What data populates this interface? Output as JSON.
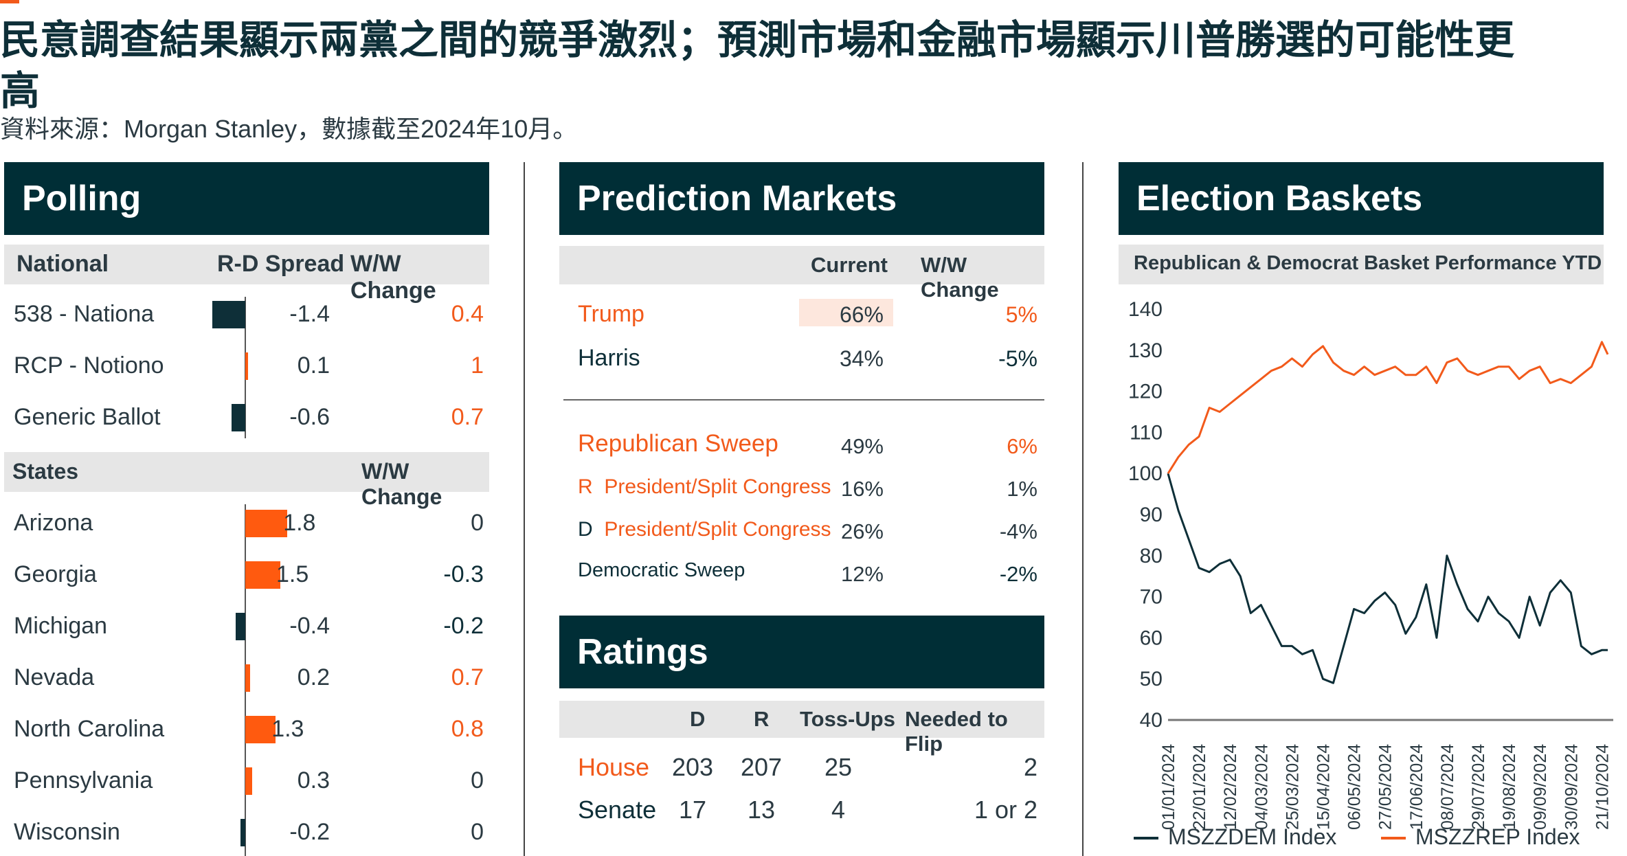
{
  "header": {
    "title": "民意調查結果顯示兩黨之間的競爭激烈；預測市場和金融市場顯示川普勝選的可能性更高",
    "source": "資料來源：Morgan Stanley，數據截至2024年10月。"
  },
  "polling": {
    "title": "Polling",
    "national_header": {
      "col1": "National",
      "col2": "R-D Spread",
      "col3": "W/W Change"
    },
    "national": [
      {
        "label": "538 - Nationa",
        "spread": "-1.4",
        "change": "0.4",
        "value": -1.4,
        "change_color": "orange"
      },
      {
        "label": "RCP - Notiono",
        "spread": "0.1",
        "change": "1",
        "value": 0.1,
        "change_color": "orange"
      },
      {
        "label": "Generic Ballot",
        "spread": "-0.6",
        "change": "0.7",
        "value": -0.6,
        "change_color": "orange"
      }
    ],
    "states_header": {
      "col1": "States",
      "col3": "W/W Change"
    },
    "states": [
      {
        "label": "Arizona",
        "spread": "1.8",
        "change": "0",
        "value": 1.8,
        "change_color": "gray"
      },
      {
        "label": "Georgia",
        "spread": "1.5",
        "change": "-0.3",
        "value": 1.5,
        "change_color": "dark"
      },
      {
        "label": "Michigan",
        "spread": "-0.4",
        "change": "-0.2",
        "value": -0.4,
        "change_color": "dark"
      },
      {
        "label": "Nevada",
        "spread": "0.2",
        "change": "0.7",
        "value": 0.2,
        "change_color": "orange"
      },
      {
        "label": "North Carolina",
        "spread": "1.3",
        "change": "0.8",
        "value": 1.3,
        "change_color": "orange"
      },
      {
        "label": "Pennsylvania",
        "spread": "0.3",
        "change": "0",
        "value": 0.3,
        "change_color": "gray"
      },
      {
        "label": "Wisconsin",
        "spread": "-0.2",
        "change": "0",
        "value": -0.2,
        "change_color": "gray"
      }
    ]
  },
  "prediction": {
    "title": "Prediction Markets",
    "header": {
      "current": "Current",
      "change": "W/W Change"
    },
    "rows": [
      {
        "label": "Trump",
        "current": "66%",
        "change": "5%",
        "highlight": true
      },
      {
        "label": "Harris",
        "current": "34%",
        "change": "-5%",
        "highlight": false
      }
    ],
    "sweep_rows": [
      {
        "prefix": "",
        "label": "Republican Sweep",
        "current": "49%",
        "change": "6%"
      },
      {
        "prefix": "R",
        "label": "President/Split Congress",
        "current": "16%",
        "change": "1%"
      },
      {
        "prefix": "D",
        "label": "President/Split Congress",
        "current": "26%",
        "change": "-4%"
      },
      {
        "prefix": "",
        "label": "Democratic Sweep",
        "current": "12%",
        "change": "-2%"
      }
    ]
  },
  "ratings": {
    "title": "Ratings",
    "header": {
      "d": "D",
      "r": "R",
      "toss": "Toss-Ups",
      "flip": "Needed to Flip"
    },
    "rows": [
      {
        "label": "House",
        "d": "203",
        "r": "207",
        "toss": "25",
        "flip": "2"
      },
      {
        "label": "Senate",
        "d": "17",
        "r": "13",
        "toss": "4",
        "flip": "1 or 2"
      }
    ]
  },
  "baskets": {
    "title": "Election Baskets",
    "subtitle": "Republican & Democrat Basket Performance YTD",
    "legend": {
      "dem": "MSZZDEM Index",
      "rep": "MSZZREP Index"
    }
  },
  "colors": {
    "navy": "#002e36",
    "orange": "#f25a1b",
    "bar_orange": "#ff5a0f",
    "dark_line": "#0e2f38"
  },
  "chart_data": [
    {
      "type": "bar",
      "title": "Polling",
      "categories": [
        "538 - Nationa",
        "RCP - Notiono",
        "Generic Ballot",
        "Arizona",
        "Georgia",
        "Michigan",
        "Nevada",
        "North Carolina",
        "Pennsylvania",
        "Wisconsin"
      ],
      "series": [
        {
          "name": "R-D Spread",
          "values": [
            -1.4,
            0.1,
            -0.6,
            1.8,
            1.5,
            -0.4,
            0.2,
            1.3,
            0.3,
            -0.2
          ]
        },
        {
          "name": "W/W Change",
          "values": [
            0.4,
            1,
            0.7,
            0,
            -0.3,
            -0.2,
            0.7,
            0.8,
            0,
            0
          ]
        }
      ]
    },
    {
      "type": "line",
      "title": "Republican & Democrat Basket Performance YTD",
      "ylim": [
        40,
        140
      ],
      "yticks": [
        40,
        50,
        60,
        70,
        80,
        90,
        100,
        110,
        120,
        130,
        140
      ],
      "x_ticks": [
        "01/01/2024",
        "22/01/2024",
        "12/02/2024",
        "04/03/2024",
        "25/03/2024",
        "15/04/2024",
        "06/05/2024",
        "27/05/2024",
        "17/06/2024",
        "08/07/2024",
        "29/07/2024",
        "19/08/2024",
        "09/09/2024",
        "30/09/2024",
        "21/10/2024"
      ],
      "x": [
        "01/01/2024",
        "08/01/2024",
        "15/01/2024",
        "22/01/2024",
        "29/01/2024",
        "05/02/2024",
        "12/02/2024",
        "19/02/2024",
        "26/02/2024",
        "04/03/2024",
        "11/03/2024",
        "18/03/2024",
        "25/03/2024",
        "01/04/2024",
        "08/04/2024",
        "15/04/2024",
        "22/04/2024",
        "29/04/2024",
        "06/05/2024",
        "13/05/2024",
        "20/05/2024",
        "27/05/2024",
        "03/06/2024",
        "10/06/2024",
        "17/06/2024",
        "24/06/2024",
        "01/07/2024",
        "08/07/2024",
        "15/07/2024",
        "22/07/2024",
        "29/07/2024",
        "05/08/2024",
        "12/08/2024",
        "19/08/2024",
        "26/08/2024",
        "02/09/2024",
        "09/09/2024",
        "16/09/2024",
        "23/09/2024",
        "30/09/2024",
        "07/10/2024",
        "14/10/2024",
        "21/10/2024",
        "25/10/2024"
      ],
      "series": [
        {
          "name": "MSZZDEM Index",
          "values": [
            100,
            91,
            84,
            77,
            76,
            78,
            79,
            75,
            66,
            68,
            63,
            58,
            58,
            56,
            57,
            50,
            49,
            58,
            67,
            66,
            69,
            71,
            68,
            61,
            65,
            73,
            60,
            80,
            73,
            67,
            64,
            70,
            66,
            64,
            60,
            70,
            63,
            71,
            74,
            71,
            58,
            56,
            57,
            57
          ]
        },
        {
          "name": "MSZZREP Index",
          "values": [
            100,
            104,
            107,
            109,
            116,
            115,
            117,
            119,
            121,
            123,
            125,
            126,
            128,
            126,
            129,
            131,
            127,
            125,
            124,
            126,
            124,
            125,
            126,
            124,
            124,
            126,
            122,
            127,
            128,
            125,
            124,
            125,
            126,
            126,
            123,
            125,
            126,
            122,
            123,
            122,
            124,
            126,
            132,
            129
          ]
        }
      ],
      "legend": "bottom"
    }
  ]
}
